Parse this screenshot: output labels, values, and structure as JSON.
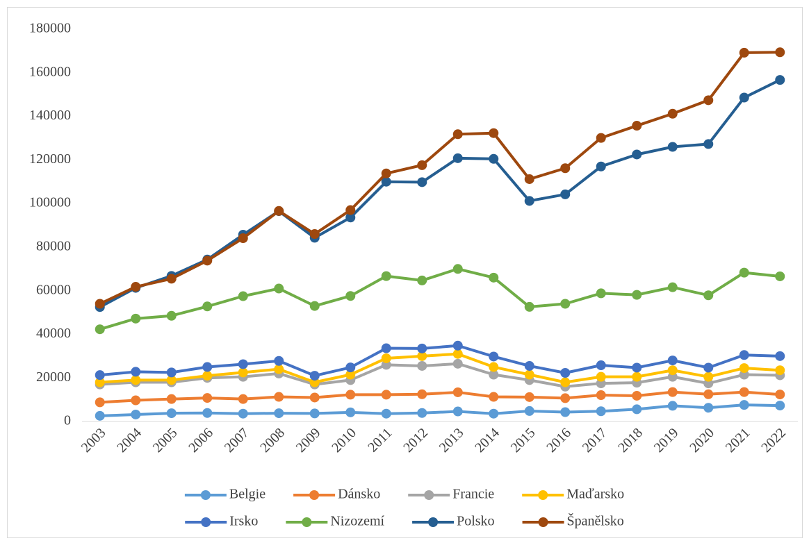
{
  "chart_data": {
    "type": "line",
    "categories": [
      "2003",
      "2004",
      "2005",
      "2006",
      "2007",
      "2008",
      "2009",
      "2010",
      "2011",
      "2012",
      "2013",
      "2014",
      "2015",
      "2016",
      "2017",
      "2018",
      "2019",
      "2020",
      "2021",
      "2022"
    ],
    "ylim": [
      0,
      180000
    ],
    "yticks": [
      0,
      20000,
      40000,
      60000,
      80000,
      100000,
      120000,
      140000,
      160000,
      180000
    ],
    "grid": false,
    "legend": "bottom",
    "series": [
      {
        "name": "Belgie",
        "color": "#5b9bd5",
        "values": [
          2600,
          3200,
          3800,
          3900,
          3600,
          3800,
          3700,
          4200,
          3600,
          3900,
          4600,
          3600,
          4800,
          4300,
          4700,
          5600,
          7200,
          6300,
          7600,
          7300
        ]
      },
      {
        "name": "Dánsko",
        "color": "#ed7d31",
        "values": [
          8800,
          9700,
          10300,
          10800,
          10300,
          11300,
          11000,
          12300,
          12300,
          12500,
          13400,
          11300,
          11200,
          10700,
          12100,
          11800,
          13500,
          12500,
          13500,
          12400
        ]
      },
      {
        "name": "Francie",
        "color": "#a5a5a5",
        "values": [
          17000,
          18000,
          18000,
          20000,
          20500,
          22000,
          17000,
          19000,
          26000,
          25500,
          26500,
          21500,
          19000,
          16000,
          17500,
          17800,
          20500,
          17500,
          21500,
          21200
        ]
      },
      {
        "name": "Maďarsko",
        "color": "#ffc000",
        "values": [
          18000,
          19000,
          19000,
          21000,
          22500,
          24000,
          18000,
          21500,
          29000,
          30000,
          31000,
          25000,
          21500,
          18000,
          20500,
          20500,
          23500,
          20500,
          24500,
          23500
        ]
      },
      {
        "name": "Irsko",
        "color": "#4472c4",
        "values": [
          21300,
          22800,
          22500,
          25000,
          26300,
          27800,
          21000,
          24800,
          33600,
          33500,
          34800,
          29800,
          25500,
          22300,
          25800,
          24700,
          28000,
          24700,
          30500,
          30000
        ]
      },
      {
        "name": "Nizozemí",
        "color": "#70ad47",
        "values": [
          42300,
          47200,
          48500,
          52800,
          57500,
          61000,
          53000,
          57600,
          66700,
          64700,
          70000,
          66000,
          52600,
          54000,
          58800,
          58100,
          61600,
          57900,
          68300,
          66600
        ]
      },
      {
        "name": "Polsko",
        "color": "#255e91",
        "values": [
          52500,
          61300,
          66800,
          74300,
          85700,
          96500,
          84300,
          93600,
          110000,
          109800,
          120800,
          120500,
          101200,
          104200,
          117000,
          122500,
          126000,
          127300,
          148600,
          156700
        ]
      },
      {
        "name": "Španělsko",
        "color": "#9e480e",
        "values": [
          54000,
          61800,
          65500,
          73800,
          84100,
          96600,
          86000,
          97000,
          113800,
          117600,
          131800,
          132300,
          111200,
          116200,
          130100,
          135700,
          141200,
          147400,
          169200,
          169400
        ]
      }
    ]
  }
}
